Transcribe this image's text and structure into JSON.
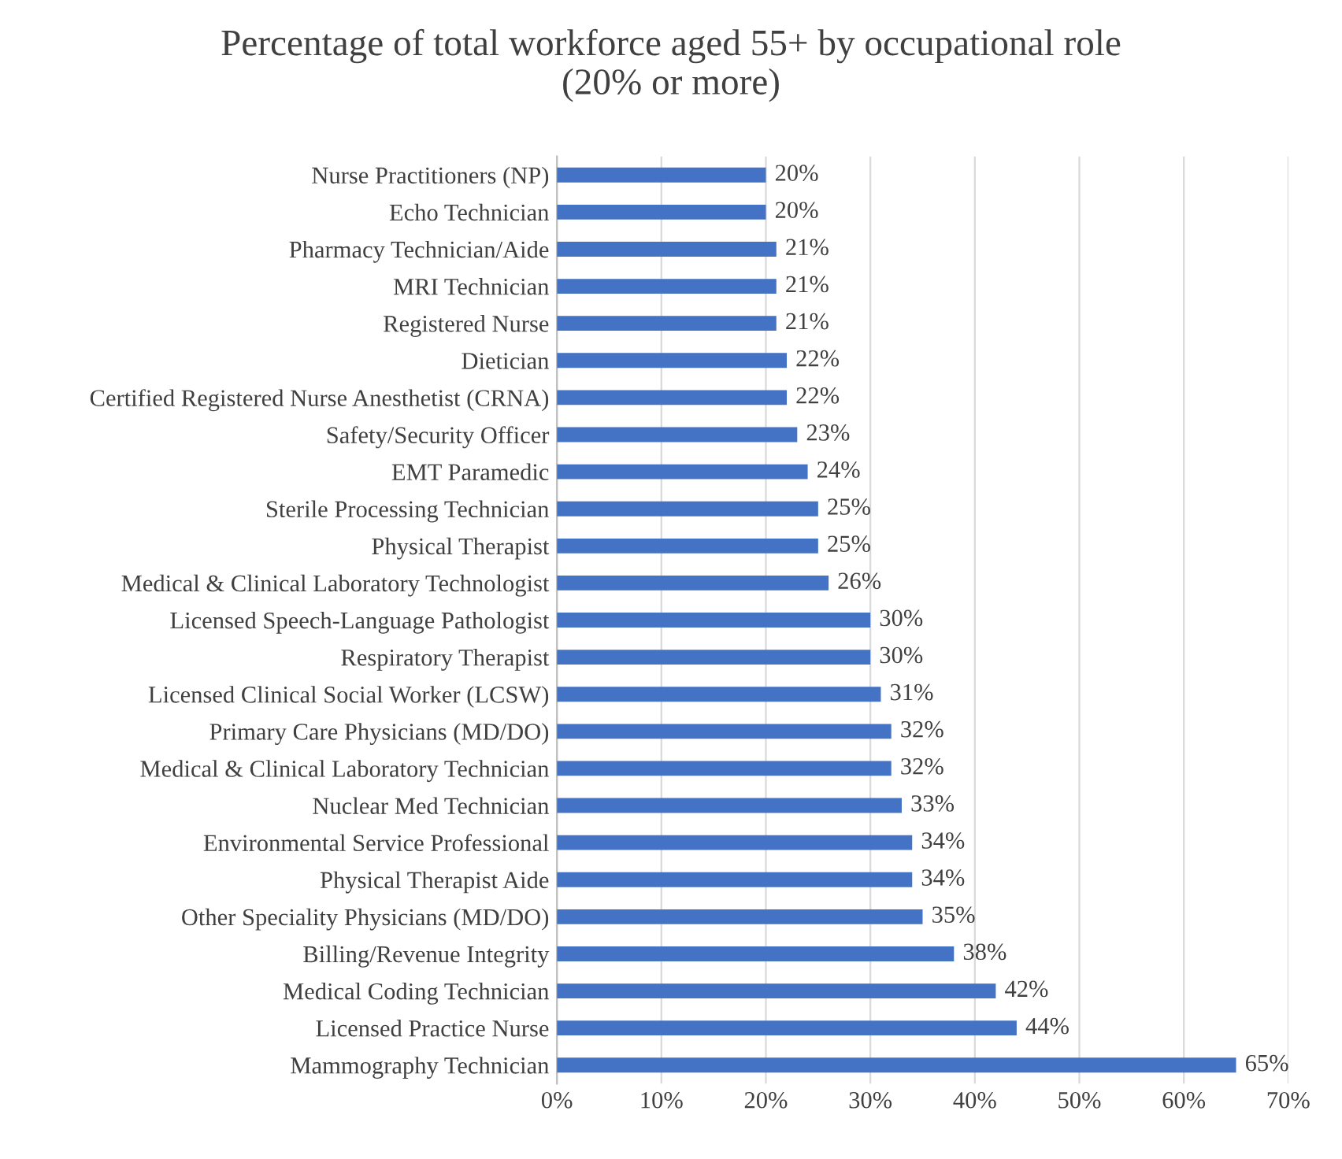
{
  "chart_data": {
    "type": "bar",
    "orientation": "horizontal",
    "title": "Percentage of total workforce aged 55+ by occupational role\n(20% or more)",
    "categories": [
      "Nurse Practitioners (NP)",
      "Echo Technician",
      "Pharmacy Technician/Aide",
      "MRI Technician",
      "Registered Nurse",
      "Dietician",
      "Certified Registered Nurse Anesthetist (CRNA)",
      "Safety/Security Officer",
      "EMT Paramedic",
      "Sterile Processing Technician",
      "Physical Therapist",
      "Medical & Clinical Laboratory Technologist",
      "Licensed Speech-Language Pathologist",
      "Respiratory Therapist",
      "Licensed Clinical Social Worker (LCSW)",
      "Primary Care Physicians (MD/DO)",
      "Medical & Clinical Laboratory Technician",
      "Nuclear Med Technician",
      "Environmental Service Professional",
      "Physical Therapist Aide",
      "Other Speciality Physicians (MD/DO)",
      "Billing/Revenue Integrity",
      "Medical Coding Technician",
      "Licensed Practice Nurse",
      "Mammography Technician"
    ],
    "values": [
      20,
      20,
      21,
      21,
      21,
      22,
      22,
      23,
      24,
      25,
      25,
      26,
      30,
      30,
      31,
      32,
      32,
      33,
      34,
      34,
      35,
      38,
      42,
      44,
      65
    ],
    "value_labels": [
      "20%",
      "20%",
      "21%",
      "21%",
      "21%",
      "22%",
      "22%",
      "23%",
      "24%",
      "25%",
      "25%",
      "26%",
      "30%",
      "30%",
      "31%",
      "32%",
      "32%",
      "33%",
      "34%",
      "34%",
      "35%",
      "38%",
      "42%",
      "44%",
      "65%"
    ],
    "color": "#4472c4",
    "xlim": [
      0,
      70
    ],
    "xticks": [
      {
        "value": 0,
        "label": "0%"
      },
      {
        "value": 10,
        "label": "10%"
      },
      {
        "value": 20,
        "label": "20%"
      },
      {
        "value": 30,
        "label": "30%"
      },
      {
        "value": 40,
        "label": "40%"
      },
      {
        "value": 50,
        "label": "50%"
      },
      {
        "value": 60,
        "label": "60%"
      },
      {
        "value": 70,
        "label": "70%"
      }
    ],
    "grid": "x",
    "legend": false
  }
}
